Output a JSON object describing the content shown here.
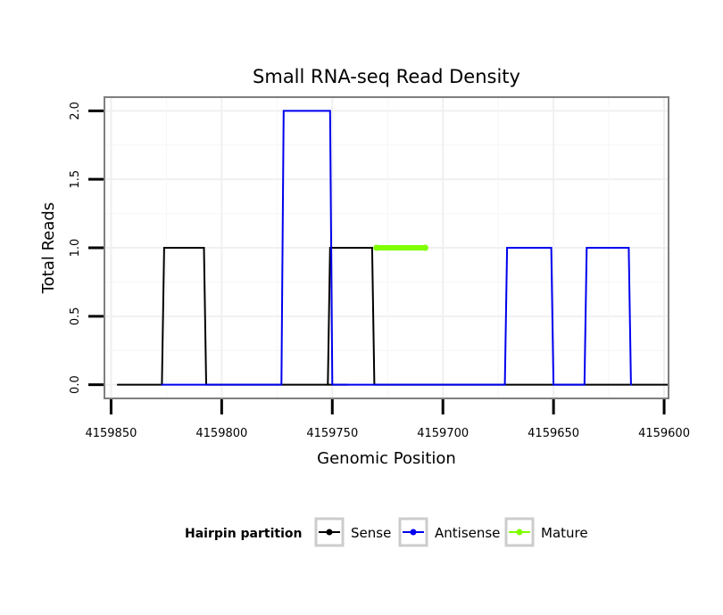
{
  "chart_data": {
    "type": "line",
    "title": "Small RNA-seq Read Density",
    "xlabel": "Genomic Position",
    "ylabel": "Total Reads",
    "xlim_reversed": [
      4159853,
      4159598
    ],
    "ylim": [
      -0.1,
      2.1
    ],
    "x_ticks": [
      4159850,
      4159800,
      4159750,
      4159700,
      4159650,
      4159600
    ],
    "x_tick_labels": [
      "4159850",
      "4159800",
      "4159750",
      "4159700",
      "4159650",
      "4159600"
    ],
    "y_ticks": [
      0,
      0.5,
      1,
      1.5,
      2
    ],
    "y_tick_labels": [
      "0.0",
      "0.5",
      "1.0",
      "1.5",
      "2.0"
    ],
    "grid": true,
    "legend": {
      "title": "Hairpin partition",
      "position": "bottom",
      "entries": [
        {
          "name": "Sense",
          "color": "#000000"
        },
        {
          "name": "Antisense",
          "color": "#0000ee"
        },
        {
          "name": "Mature",
          "color": "#7fff00"
        }
      ]
    },
    "series": [
      {
        "name": "Sense",
        "color": "#000000",
        "x": [
          4159847,
          4159827,
          4159826,
          4159808,
          4159807,
          4159767,
          4159766,
          4159744,
          4159743,
          4159752,
          4159751,
          4159732,
          4159731,
          4159710,
          4159709,
          4159690,
          4159689,
          4159598
        ],
        "y": [
          0,
          0,
          1,
          1,
          0,
          0,
          0,
          0,
          0,
          0,
          1,
          1,
          0,
          0,
          0,
          0,
          0,
          0
        ]
      },
      {
        "name": "Antisense",
        "color": "#0000ee",
        "x": [
          4159827,
          4159808,
          4159773,
          4159772,
          4159751,
          4159750,
          4159732,
          4159710,
          4159672,
          4159671,
          4159651,
          4159650,
          4159636,
          4159635,
          4159616,
          4159615
        ],
        "y": [
          0,
          0,
          0,
          2,
          2,
          0,
          0,
          0,
          0,
          1,
          1,
          0,
          0,
          1,
          1,
          0
        ]
      },
      {
        "name": "Mature",
        "color": "#7fff00",
        "x": [
          4159730,
          4159708
        ],
        "y": [
          1,
          1
        ]
      }
    ]
  }
}
